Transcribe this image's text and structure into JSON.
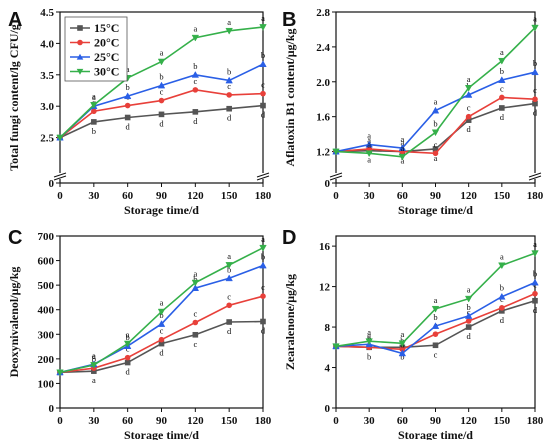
{
  "chart_data": [
    {
      "type": "line",
      "panel": "A",
      "ylabel": "Total fungi content/lg CFU/g",
      "xlabel": "Storage time/d",
      "x": [
        0,
        30,
        60,
        90,
        120,
        150,
        180
      ],
      "xlim": [
        0,
        180
      ],
      "ylim": [
        2.0,
        4.5
      ],
      "y_ticks": [
        "2.5",
        "3.0",
        "3.5",
        "4.0",
        "4.5"
      ],
      "y_broken": true,
      "legend_position": "top-left",
      "series": [
        {
          "name": "15°C",
          "color": "#555555",
          "marker": "square",
          "values": [
            2.5,
            2.75,
            2.82,
            2.87,
            2.91,
            2.96,
            3.01
          ],
          "labels": [
            "",
            "b",
            "d",
            "d",
            "d",
            "d",
            "d"
          ]
        },
        {
          "name": "20°C",
          "color": "#e8403a",
          "marker": "circle",
          "values": [
            2.5,
            2.92,
            3.01,
            3.09,
            3.26,
            3.18,
            3.2
          ],
          "labels": [
            "",
            "c",
            "c",
            "c",
            "c",
            "c",
            "c"
          ]
        },
        {
          "name": "25°C",
          "color": "#2a5fe6",
          "marker": "triangle-up",
          "values": [
            2.5,
            3.0,
            3.16,
            3.33,
            3.5,
            3.41,
            3.67
          ],
          "labels": [
            "",
            "a",
            "b",
            "b",
            "b",
            "b",
            "b"
          ]
        },
        {
          "name": "30°C",
          "color": "#35b04a",
          "marker": "triangle-down",
          "values": [
            2.5,
            3.02,
            3.45,
            3.71,
            4.09,
            4.2,
            4.26
          ],
          "labels": [
            "",
            "a",
            "a",
            "a",
            "a",
            "a",
            "a"
          ]
        }
      ]
    },
    {
      "type": "line",
      "panel": "B",
      "ylabel": "Aflatoxin B1 content/μg/kg",
      "xlabel": "Storage time/d",
      "x": [
        0,
        30,
        60,
        90,
        120,
        150,
        180
      ],
      "xlim": [
        0,
        180
      ],
      "ylim": [
        1.0,
        2.8
      ],
      "y_ticks": [
        "1.2",
        "1.6",
        "2.0",
        "2.4",
        "2.8"
      ],
      "y_broken": true,
      "series": [
        {
          "name": "15°C",
          "color": "#555555",
          "marker": "square",
          "values": [
            1.2,
            1.21,
            1.2,
            1.23,
            1.56,
            1.7,
            1.75
          ],
          "labels": [
            "",
            "a",
            "a",
            "a",
            "d",
            "d",
            "d"
          ]
        },
        {
          "name": "20°C",
          "color": "#e8403a",
          "marker": "circle",
          "values": [
            1.2,
            1.23,
            1.2,
            1.18,
            1.6,
            1.82,
            1.8
          ],
          "labels": [
            "",
            "a",
            "a",
            "c",
            "c",
            "c",
            "c"
          ]
        },
        {
          "name": "25°C",
          "color": "#2a5fe6",
          "marker": "triangle-up",
          "values": [
            1.2,
            1.28,
            1.24,
            1.67,
            1.85,
            2.02,
            2.11
          ],
          "labels": [
            "",
            "a",
            "a",
            "a",
            "b",
            "b",
            "b"
          ]
        },
        {
          "name": "30°C",
          "color": "#35b04a",
          "marker": "triangle-down",
          "values": [
            1.2,
            1.18,
            1.14,
            1.42,
            1.93,
            2.24,
            2.62
          ],
          "labels": [
            "",
            "a",
            "a",
            "b",
            "a",
            "a",
            "a"
          ]
        }
      ]
    },
    {
      "type": "line",
      "panel": "C",
      "ylabel": "Deoxynivalenol/μg/kg",
      "xlabel": "Storage time/d",
      "x": [
        0,
        30,
        60,
        90,
        120,
        150,
        180
      ],
      "xlim": [
        0,
        180
      ],
      "ylim": [
        0,
        700
      ],
      "y_ticks": [
        "0",
        "100",
        "200",
        "300",
        "400",
        "500",
        "600",
        "700"
      ],
      "series": [
        {
          "name": "15°C",
          "color": "#555555",
          "marker": "square",
          "values": [
            145,
            150,
            185,
            262,
            298,
            350,
            352
          ],
          "labels": [
            "",
            "a",
            "d",
            "d",
            "c",
            "d",
            "d"
          ]
        },
        {
          "name": "20°C",
          "color": "#e8403a",
          "marker": "circle",
          "values": [
            145,
            162,
            205,
            278,
            348,
            418,
            455
          ],
          "labels": [
            "",
            "b",
            "c",
            "c",
            "c",
            "c",
            "c"
          ]
        },
        {
          "name": "25°C",
          "color": "#2a5fe6",
          "marker": "triangle-up",
          "values": [
            145,
            178,
            252,
            342,
            488,
            528,
            580
          ],
          "labels": [
            "",
            "a",
            "b",
            "b",
            "b",
            "b",
            "b"
          ]
        },
        {
          "name": "30°C",
          "color": "#35b04a",
          "marker": "triangle-down",
          "values": [
            145,
            175,
            262,
            392,
            510,
            582,
            652
          ],
          "labels": [
            "",
            "a",
            "a",
            "a",
            "a",
            "a",
            "a"
          ]
        }
      ]
    },
    {
      "type": "line",
      "panel": "D",
      "ylabel": "Zearalenone/μg/kg",
      "xlabel": "Storage time/d",
      "x": [
        0,
        30,
        60,
        90,
        120,
        150,
        180
      ],
      "xlim": [
        0,
        180
      ],
      "ylim": [
        0,
        17
      ],
      "y_ticks": [
        "0",
        "4",
        "8",
        "12",
        "16"
      ],
      "series": [
        {
          "name": "15°C",
          "color": "#555555",
          "marker": "square",
          "values": [
            6.1,
            6.0,
            6.0,
            6.2,
            8.0,
            9.6,
            10.6
          ],
          "labels": [
            "",
            "b",
            "b",
            "c",
            "d",
            "d",
            "d"
          ]
        },
        {
          "name": "20°C",
          "color": "#e8403a",
          "marker": "circle",
          "values": [
            6.1,
            6.0,
            5.8,
            7.3,
            8.6,
            9.9,
            11.3
          ],
          "labels": [
            "",
            "b",
            "b",
            "c",
            "c",
            "c",
            "c"
          ]
        },
        {
          "name": "25°C",
          "color": "#2a5fe6",
          "marker": "triangle-up",
          "values": [
            6.1,
            6.3,
            5.4,
            8.1,
            9.1,
            11.0,
            12.4
          ],
          "labels": [
            "",
            "a",
            "a",
            "b",
            "b",
            "b",
            "b"
          ]
        },
        {
          "name": "30°C",
          "color": "#35b04a",
          "marker": "triangle-down",
          "values": [
            6.1,
            6.6,
            6.4,
            9.8,
            10.8,
            14.1,
            15.3
          ],
          "labels": [
            "",
            "a",
            "a",
            "a",
            "a",
            "a",
            "a"
          ]
        }
      ]
    }
  ]
}
